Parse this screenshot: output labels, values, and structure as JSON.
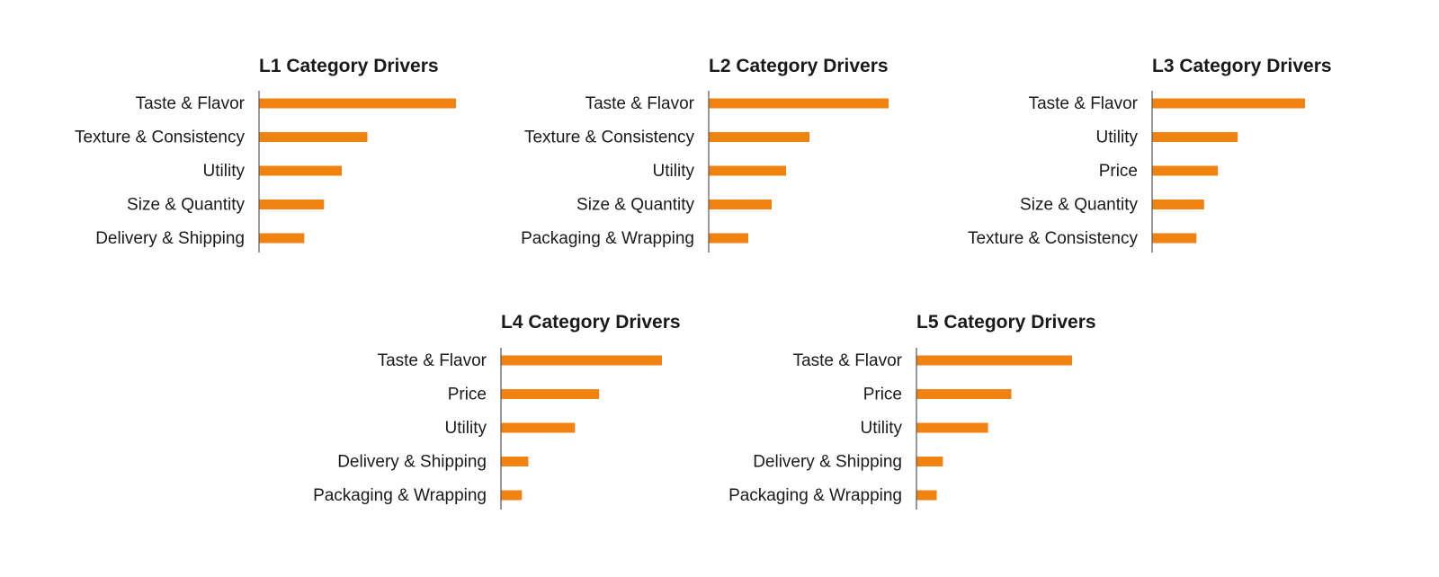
{
  "colors": {
    "bar": "#F0820F",
    "axis": "#555555",
    "text": "#1a1a1a",
    "background": "#ffffff"
  },
  "chart_data": [
    {
      "type": "bar",
      "orientation": "horizontal",
      "title": "L1 Category Drivers",
      "categories": [
        "Taste & Flavor",
        "Texture & Consistency",
        "Utility",
        "Size & Quantity",
        "Delivery & Shipping"
      ],
      "values": [
        100,
        55,
        42,
        33,
        23
      ],
      "xlim": [
        0,
        100
      ],
      "grid": false,
      "legend": "none"
    },
    {
      "type": "bar",
      "orientation": "horizontal",
      "title": "L2 Category Drivers",
      "categories": [
        "Taste & Flavor",
        "Texture & Consistency",
        "Utility",
        "Size & Quantity",
        "Packaging & Wrapping"
      ],
      "values": [
        100,
        56,
        43,
        35,
        22
      ],
      "xlim": [
        0,
        100
      ],
      "grid": false,
      "legend": "none"
    },
    {
      "type": "bar",
      "orientation": "horizontal",
      "title": "L3 Category Drivers",
      "categories": [
        "Taste & Flavor",
        "Utility",
        "Price",
        "Size & Quantity",
        "Texture & Consistency"
      ],
      "values": [
        100,
        56,
        43,
        34,
        29
      ],
      "xlim": [
        0,
        100
      ],
      "grid": false,
      "legend": "none"
    },
    {
      "type": "bar",
      "orientation": "horizontal",
      "title": "L4 Category Drivers",
      "categories": [
        "Taste & Flavor",
        "Price",
        "Utility",
        "Delivery & Shipping",
        "Packaging & Wrapping"
      ],
      "values": [
        100,
        61,
        46,
        17,
        13
      ],
      "xlim": [
        0,
        100
      ],
      "grid": false,
      "legend": "none"
    },
    {
      "type": "bar",
      "orientation": "horizontal",
      "title": "L5 Category Drivers",
      "categories": [
        "Taste & Flavor",
        "Price",
        "Utility",
        "Delivery & Shipping",
        "Packaging & Wrapping"
      ],
      "values": [
        100,
        61,
        46,
        17,
        13
      ],
      "xlim": [
        0,
        100
      ],
      "grid": false,
      "legend": "none"
    }
  ]
}
